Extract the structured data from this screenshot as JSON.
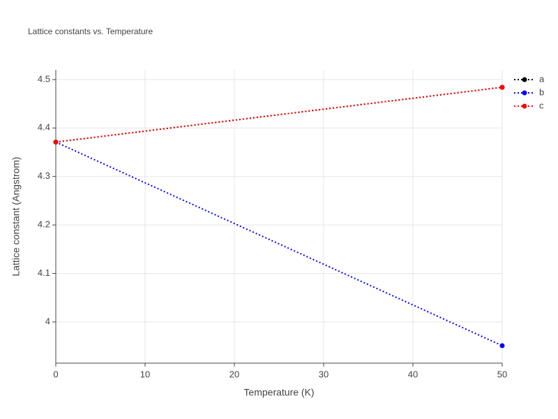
{
  "chart_data": {
    "type": "line",
    "title": "Lattice constants vs. Temperature",
    "x_label": "Temperature (K)",
    "y_label": "Lattice constant (Angstrom)",
    "x": [
      0,
      50
    ],
    "series": [
      {
        "name": "a",
        "color": "#000000",
        "values": [
          4.371,
          4.484
        ]
      },
      {
        "name": "b",
        "color": "#0000ff",
        "values": [
          4.371,
          3.951
        ]
      },
      {
        "name": "c",
        "color": "#ff0000",
        "values": [
          4.371,
          4.484
        ]
      }
    ],
    "xlim": [
      0,
      50
    ],
    "xticks": [
      0,
      10,
      20,
      30,
      40,
      50
    ],
    "ylim": [
      3.915,
      4.52
    ],
    "yticks": [
      4,
      4.1,
      4.2,
      4.3,
      4.4,
      4.5
    ],
    "grid": true,
    "legend": "top-right"
  }
}
